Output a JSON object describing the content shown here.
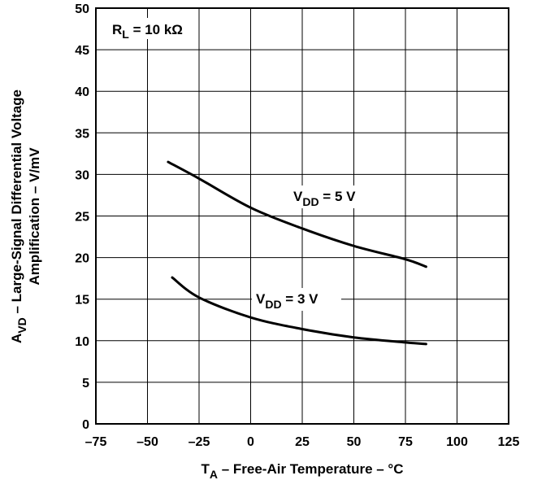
{
  "chart_data": {
    "type": "line",
    "xlabel": {
      "main": "T",
      "sub": "A",
      "rest": " – Free-Air Temperature – °C"
    },
    "ylabel": {
      "line1_main": "A",
      "line1_sub": "VD",
      "line1_rest": " – Large-Signal Differential Voltage",
      "line2": "Amplification – V/mV"
    },
    "xlim": [
      -75,
      125
    ],
    "ylim": [
      0,
      50
    ],
    "xticks": [
      -75,
      -50,
      -25,
      0,
      25,
      50,
      75,
      100,
      125
    ],
    "xtick_labels": [
      "–75",
      "–50",
      "–25",
      "0",
      "25",
      "50",
      "75",
      "100",
      "125"
    ],
    "yticks": [
      0,
      5,
      10,
      15,
      20,
      25,
      30,
      35,
      40,
      45,
      50
    ],
    "ytick_labels": [
      "0",
      "5",
      "10",
      "15",
      "20",
      "25",
      "30",
      "35",
      "40",
      "45",
      "50"
    ],
    "grid": true,
    "annotation": {
      "main": "R",
      "sub": "L",
      "rest": " = 10 kΩ"
    },
    "series": [
      {
        "label_main": "V",
        "label_sub": "DD",
        "label_rest": " = 5 V",
        "x": [
          -40,
          -25,
          0,
          25,
          50,
          75,
          85
        ],
        "y": [
          31.5,
          29.5,
          26.0,
          23.5,
          21.4,
          19.8,
          18.9
        ]
      },
      {
        "label_main": "V",
        "label_sub": "DD",
        "label_rest": " = 3 V",
        "x": [
          -38,
          -25,
          0,
          25,
          50,
          75,
          85
        ],
        "y": [
          17.6,
          15.2,
          12.8,
          11.4,
          10.4,
          9.8,
          9.6
        ]
      }
    ]
  }
}
